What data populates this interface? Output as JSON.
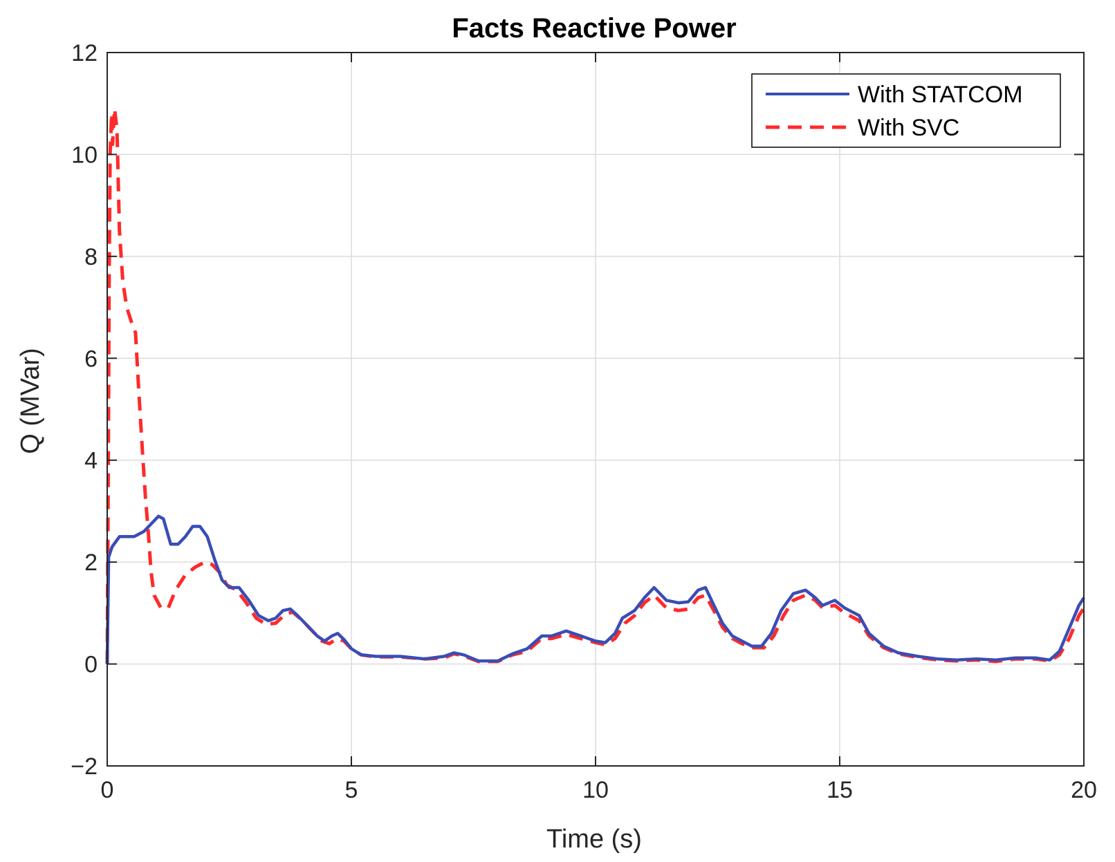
{
  "chart_data": {
    "type": "line",
    "title": "Facts Reactive Power",
    "xlabel": "Time (s)",
    "ylabel": "Q (MVar)",
    "xlim": [
      0,
      20
    ],
    "ylim": [
      -2,
      12
    ],
    "xticks": [
      0,
      5,
      10,
      15,
      20
    ],
    "yticks": [
      -2,
      0,
      2,
      4,
      6,
      8,
      10,
      12
    ],
    "xtick_labels": [
      "0",
      "5",
      "10",
      "15",
      "20"
    ],
    "ytick_labels": [
      "−2",
      "0",
      "2",
      "4",
      "6",
      "8",
      "10",
      "12"
    ],
    "grid": true,
    "legend_location": "top-right",
    "series": [
      {
        "name": "With STATCOM",
        "color": "#3a4db5",
        "style": "solid",
        "points": [
          [
            0,
            0
          ],
          [
            0.03,
            2.1
          ],
          [
            0.1,
            2.3
          ],
          [
            0.25,
            2.5
          ],
          [
            0.4,
            2.5
          ],
          [
            0.55,
            2.5
          ],
          [
            0.75,
            2.6
          ],
          [
            0.9,
            2.75
          ],
          [
            1.05,
            2.9
          ],
          [
            1.15,
            2.85
          ],
          [
            1.3,
            2.35
          ],
          [
            1.45,
            2.35
          ],
          [
            1.6,
            2.5
          ],
          [
            1.75,
            2.7
          ],
          [
            1.9,
            2.7
          ],
          [
            2.05,
            2.5
          ],
          [
            2.2,
            2.05
          ],
          [
            2.35,
            1.65
          ],
          [
            2.5,
            1.5
          ],
          [
            2.7,
            1.5
          ],
          [
            2.9,
            1.25
          ],
          [
            3.1,
            0.95
          ],
          [
            3.3,
            0.85
          ],
          [
            3.45,
            0.9
          ],
          [
            3.6,
            1.05
          ],
          [
            3.75,
            1.08
          ],
          [
            3.9,
            0.95
          ],
          [
            4.1,
            0.75
          ],
          [
            4.3,
            0.55
          ],
          [
            4.45,
            0.45
          ],
          [
            4.6,
            0.55
          ],
          [
            4.72,
            0.6
          ],
          [
            4.85,
            0.48
          ],
          [
            5.0,
            0.3
          ],
          [
            5.2,
            0.18
          ],
          [
            5.5,
            0.15
          ],
          [
            6.0,
            0.15
          ],
          [
            6.5,
            0.1
          ],
          [
            6.9,
            0.15
          ],
          [
            7.1,
            0.22
          ],
          [
            7.3,
            0.18
          ],
          [
            7.6,
            0.06
          ],
          [
            8.0,
            0.06
          ],
          [
            8.3,
            0.2
          ],
          [
            8.6,
            0.3
          ],
          [
            8.9,
            0.55
          ],
          [
            9.1,
            0.55
          ],
          [
            9.4,
            0.65
          ],
          [
            9.7,
            0.55
          ],
          [
            10.0,
            0.45
          ],
          [
            10.2,
            0.42
          ],
          [
            10.4,
            0.6
          ],
          [
            10.55,
            0.9
          ],
          [
            10.8,
            1.05
          ],
          [
            11.0,
            1.3
          ],
          [
            11.2,
            1.5
          ],
          [
            11.45,
            1.25
          ],
          [
            11.7,
            1.2
          ],
          [
            11.9,
            1.22
          ],
          [
            12.1,
            1.45
          ],
          [
            12.25,
            1.5
          ],
          [
            12.45,
            1.1
          ],
          [
            12.6,
            0.8
          ],
          [
            12.8,
            0.55
          ],
          [
            13.0,
            0.45
          ],
          [
            13.2,
            0.35
          ],
          [
            13.4,
            0.35
          ],
          [
            13.6,
            0.6
          ],
          [
            13.8,
            1.05
          ],
          [
            14.05,
            1.38
          ],
          [
            14.3,
            1.45
          ],
          [
            14.5,
            1.3
          ],
          [
            14.65,
            1.15
          ],
          [
            14.9,
            1.25
          ],
          [
            15.1,
            1.1
          ],
          [
            15.4,
            0.95
          ],
          [
            15.6,
            0.6
          ],
          [
            15.9,
            0.35
          ],
          [
            16.2,
            0.22
          ],
          [
            16.6,
            0.15
          ],
          [
            17.0,
            0.1
          ],
          [
            17.4,
            0.08
          ],
          [
            17.8,
            0.1
          ],
          [
            18.2,
            0.08
          ],
          [
            18.6,
            0.12
          ],
          [
            19.0,
            0.12
          ],
          [
            19.3,
            0.08
          ],
          [
            19.5,
            0.25
          ],
          [
            19.7,
            0.7
          ],
          [
            19.9,
            1.15
          ],
          [
            20.0,
            1.3
          ]
        ]
      },
      {
        "name": "With SVC",
        "color": "#ff2a2a",
        "style": "dashed",
        "points": [
          [
            0,
            0
          ],
          [
            0.02,
            3.5
          ],
          [
            0.04,
            7.5
          ],
          [
            0.06,
            10.0
          ],
          [
            0.09,
            10.8
          ],
          [
            0.11,
            10.2
          ],
          [
            0.15,
            10.9
          ],
          [
            0.2,
            10.5
          ],
          [
            0.25,
            8.5
          ],
          [
            0.32,
            7.5
          ],
          [
            0.4,
            7.0
          ],
          [
            0.5,
            6.7
          ],
          [
            0.58,
            6.5
          ],
          [
            0.65,
            5.3
          ],
          [
            0.72,
            4.2
          ],
          [
            0.78,
            3.3
          ],
          [
            0.84,
            2.6
          ],
          [
            0.9,
            1.8
          ],
          [
            0.96,
            1.35
          ],
          [
            1.1,
            1.1
          ],
          [
            1.25,
            1.1
          ],
          [
            1.4,
            1.45
          ],
          [
            1.6,
            1.75
          ],
          [
            1.8,
            1.9
          ],
          [
            2.0,
            2.0
          ],
          [
            2.15,
            1.95
          ],
          [
            2.3,
            1.8
          ],
          [
            2.45,
            1.55
          ],
          [
            2.65,
            1.45
          ],
          [
            2.85,
            1.2
          ],
          [
            3.05,
            0.9
          ],
          [
            3.25,
            0.78
          ],
          [
            3.45,
            0.8
          ],
          [
            3.65,
            0.98
          ],
          [
            3.8,
            1.02
          ],
          [
            4.0,
            0.85
          ],
          [
            4.2,
            0.65
          ],
          [
            4.4,
            0.45
          ],
          [
            4.55,
            0.4
          ],
          [
            4.7,
            0.5
          ],
          [
            4.85,
            0.45
          ],
          [
            5.0,
            0.3
          ],
          [
            5.2,
            0.18
          ],
          [
            5.5,
            0.14
          ],
          [
            6.0,
            0.14
          ],
          [
            6.5,
            0.1
          ],
          [
            6.9,
            0.12
          ],
          [
            7.1,
            0.2
          ],
          [
            7.3,
            0.16
          ],
          [
            7.6,
            0.05
          ],
          [
            8.0,
            0.05
          ],
          [
            8.3,
            0.18
          ],
          [
            8.6,
            0.25
          ],
          [
            8.9,
            0.5
          ],
          [
            9.1,
            0.5
          ],
          [
            9.4,
            0.58
          ],
          [
            9.7,
            0.5
          ],
          [
            10.0,
            0.42
          ],
          [
            10.2,
            0.38
          ],
          [
            10.4,
            0.5
          ],
          [
            10.6,
            0.8
          ],
          [
            10.8,
            0.95
          ],
          [
            11.0,
            1.2
          ],
          [
            11.2,
            1.35
          ],
          [
            11.45,
            1.1
          ],
          [
            11.7,
            1.05
          ],
          [
            11.9,
            1.08
          ],
          [
            12.1,
            1.3
          ],
          [
            12.25,
            1.35
          ],
          [
            12.45,
            1.0
          ],
          [
            12.6,
            0.72
          ],
          [
            12.8,
            0.5
          ],
          [
            13.0,
            0.4
          ],
          [
            13.2,
            0.32
          ],
          [
            13.45,
            0.32
          ],
          [
            13.65,
            0.55
          ],
          [
            13.85,
            0.95
          ],
          [
            14.05,
            1.25
          ],
          [
            14.3,
            1.35
          ],
          [
            14.5,
            1.25
          ],
          [
            14.65,
            1.1
          ],
          [
            14.9,
            1.15
          ],
          [
            15.1,
            1.0
          ],
          [
            15.4,
            0.85
          ],
          [
            15.6,
            0.55
          ],
          [
            15.9,
            0.32
          ],
          [
            16.2,
            0.2
          ],
          [
            16.6,
            0.13
          ],
          [
            17.0,
            0.08
          ],
          [
            17.4,
            0.06
          ],
          [
            17.8,
            0.08
          ],
          [
            18.2,
            0.05
          ],
          [
            18.6,
            0.1
          ],
          [
            19.0,
            0.1
          ],
          [
            19.3,
            0.06
          ],
          [
            19.5,
            0.18
          ],
          [
            19.7,
            0.5
          ],
          [
            19.9,
            0.95
          ],
          [
            20.0,
            1.1
          ]
        ]
      }
    ]
  }
}
